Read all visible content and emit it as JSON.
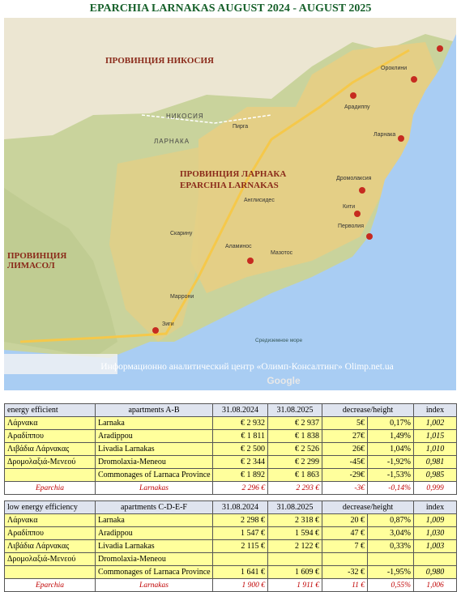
{
  "title": "EPARCHIA LARNAKAS AUGUST 2024 - AUGUST 2025",
  "map": {
    "labels": [
      "ПРОВИНЦИЯ НИКОСИЯ",
      "ЛАРНАКА",
      "ПРОВИНЦИЯ ЛАРНАКА",
      "EPARCHIA LARNAKAS",
      "ПРОВИНЦИЯ",
      "ЛИМАСОЛ",
      "НИКОСИЯ",
      "Арадиппу",
      "Ларнака",
      "Дромолаксия",
      "Кити",
      "Перволия",
      "Аламинос",
      "Мазотос",
      "Англисидес",
      "Скарину",
      "Зиги",
      "Пирга",
      "Ороклини",
      "Маррони",
      "Средиземное море",
      "Информационно аналитический центр «Олимп-Консалтинг»  Olimp.net.ua",
      "Google"
    ]
  },
  "tables": [
    {
      "header": [
        "energy efficient",
        "apartments A-B",
        "31.08.2024",
        "31.08.2025",
        "decrease/height",
        "index"
      ],
      "rows": [
        [
          "Λάρνακα",
          "Larnaka",
          "€ 2 932",
          "€ 2 937",
          "5€",
          "0,17%",
          "1,002"
        ],
        [
          "Αραδίππου",
          "Aradippou",
          "€ 1 811",
          "€ 1 838",
          "27€",
          "1,49%",
          "1,015"
        ],
        [
          "Λιβάδια Λάρνακας",
          "Livadia Larnakas",
          "€ 2 500",
          "€ 2 526",
          "26€",
          "1,04%",
          "1,010"
        ],
        [
          "Δρομολαξιά-Μενεού",
          "Dromolaxia-Meneou",
          "€ 2 344",
          "€ 2 299",
          "-45€",
          "-1,92%",
          "0,981"
        ],
        [
          null,
          "Commonages of Larnaca Province",
          "€ 1 892",
          "€ 1 863",
          "-29€",
          "-1,53%",
          "0,985"
        ],
        [
          "Eparchia",
          "Larnakas",
          "2 296 €",
          "2 293 €",
          "-3€",
          "-0,14%",
          "0,999"
        ]
      ]
    },
    {
      "header": [
        "low energy efficiency",
        "apartments C-D-E-F",
        "31.08.2024",
        "31.08.2025",
        "decrease/height",
        "index"
      ],
      "rows": [
        [
          "Λάρνακα",
          "Larnaka",
          "2 298 €",
          "2 318 €",
          "20 €",
          "0,87%",
          "1,009"
        ],
        [
          "Αραδίππου",
          "Aradippou",
          "1 547 €",
          "1 594 €",
          "47 €",
          "3,04%",
          "1,030"
        ],
        [
          "Λιβάδια Λάρνακας",
          "Livadia Larnakas",
          "2 115 €",
          "2 122 €",
          "7 €",
          "0,33%",
          "1,003"
        ],
        [
          "Δρομολαξιά-Μενεού",
          "Dromolaxia-Meneou",
          null,
          null,
          null,
          null,
          null
        ],
        [
          null,
          "Commonages of Larnaca Province",
          "1 641 €",
          "1 609 €",
          "-32 €",
          "-1,95%",
          "0,980"
        ],
        [
          "Eparchia",
          "Larnakas",
          "1 900 €",
          "1 911 €",
          "11 €",
          "0,55%",
          "1,006"
        ]
      ]
    }
  ]
}
